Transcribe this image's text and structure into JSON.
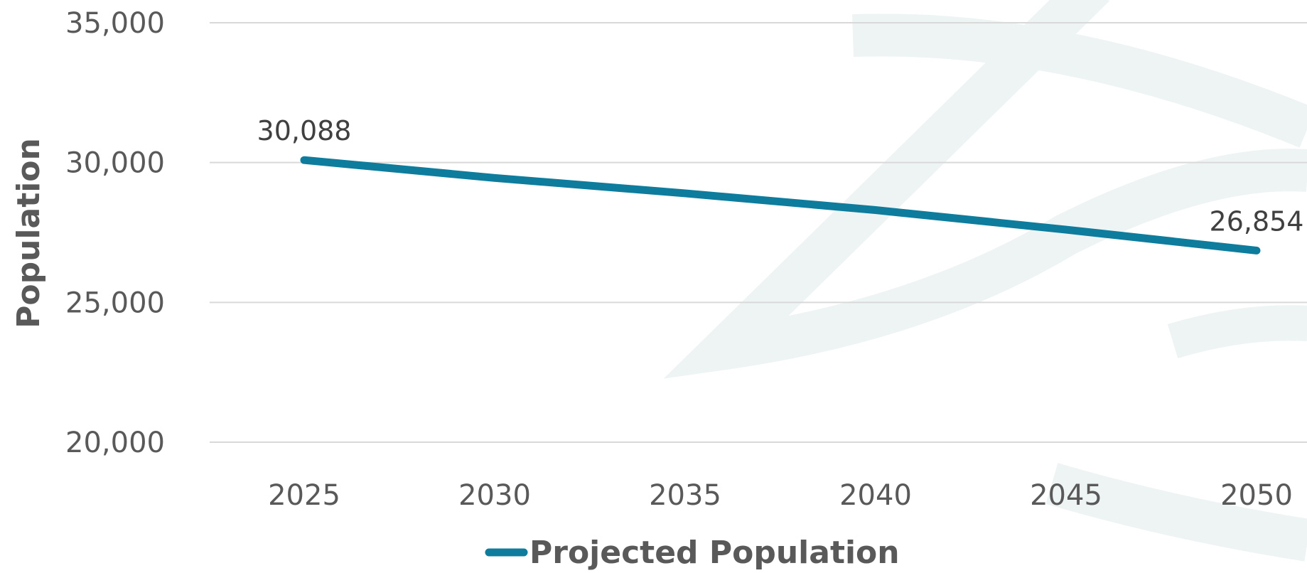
{
  "chart_data": {
    "type": "line",
    "title": "",
    "xlabel": "",
    "ylabel": "Population",
    "ylim": [
      20000,
      35000
    ],
    "yticks": [
      20000,
      25000,
      30000,
      35000
    ],
    "ytick_labels": [
      "20,000",
      "25,000",
      "30,000",
      "35,000"
    ],
    "categories": [
      "2025",
      "2030",
      "2035",
      "2040",
      "2045",
      "2050"
    ],
    "series": [
      {
        "name": "Projected Population",
        "color": "#0e7c9c",
        "values": [
          30088,
          29450,
          28900,
          28300,
          27600,
          26854
        ]
      }
    ],
    "data_labels": [
      {
        "index": 0,
        "text": "30,088"
      },
      {
        "index": 5,
        "text": "26,854"
      }
    ],
    "grid": true,
    "legend_position": "bottom"
  }
}
